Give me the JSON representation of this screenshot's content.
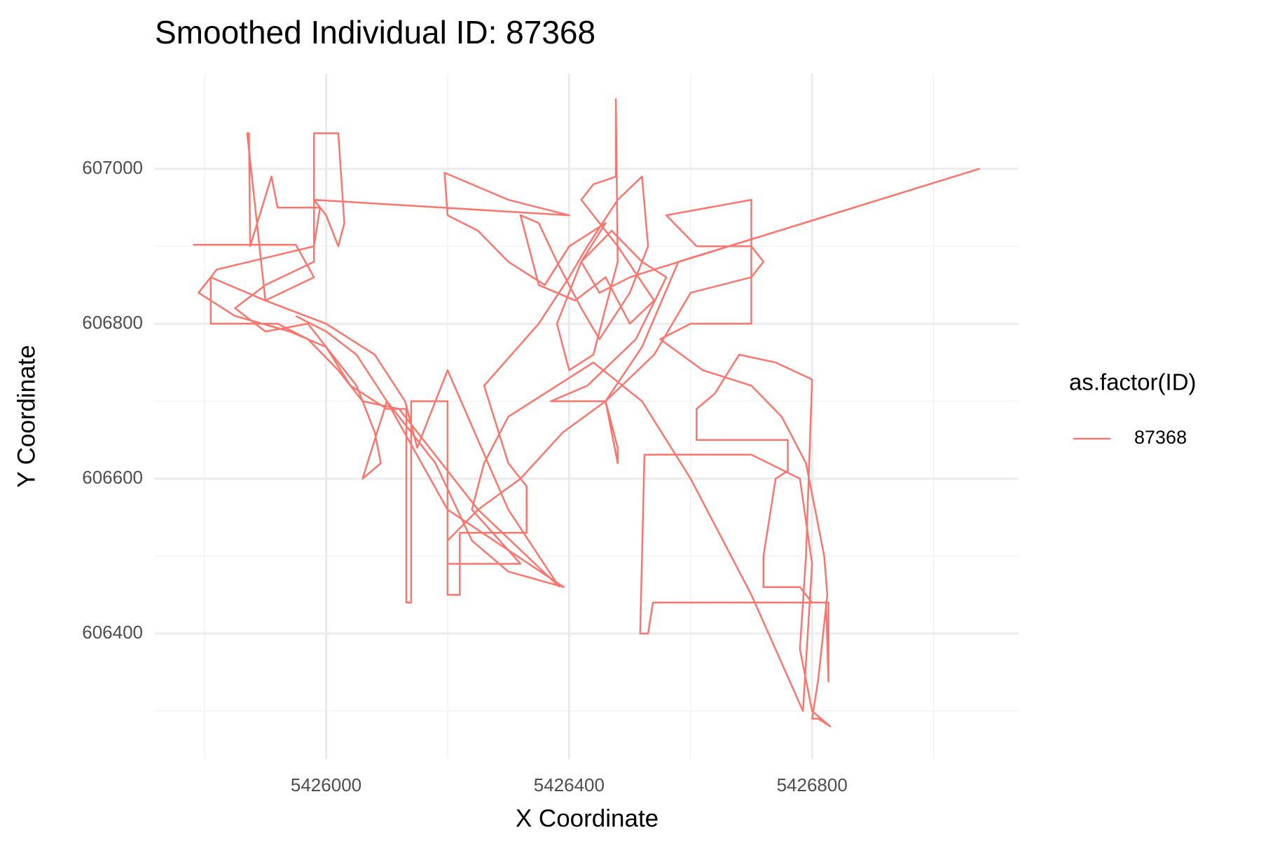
{
  "chart_data": {
    "type": "line",
    "title": "Smoothed Individual ID: 87368",
    "x_label": "X Coordinate",
    "y_label": "Y Coordinate",
    "legend_title": "as.factor(ID)",
    "legend_position": "right",
    "grid": true,
    "xlim": [
      5425718,
      5427140
    ],
    "ylim": [
      606238,
      607123
    ],
    "xticks": [
      5426000,
      5426400,
      5426800
    ],
    "yticks": [
      606400,
      606600,
      606800,
      607000
    ],
    "x_minor_ticks": [
      5425800,
      5426200,
      5426600,
      5427000
    ],
    "y_minor_ticks": [
      606300,
      606500,
      606700,
      606900
    ],
    "x": [
      5425781,
      5425950,
      5425980,
      5425900,
      5425810,
      5425810,
      5425920,
      5425970,
      5426020,
      5426060,
      5426120,
      5426160,
      5426200,
      5426250,
      5426383,
      5426300,
      5426200,
      5426150,
      5426130,
      5426080,
      5426000,
      5425900,
      5425870,
      5425873,
      5425875,
      5425910,
      5425920,
      5425990,
      5425980,
      5425820,
      5425800,
      5425790,
      5425850,
      5425940,
      5426000,
      5426040,
      5426100,
      5426132,
      5426132,
      5426140,
      5426140,
      5426200,
      5426200,
      5426220,
      5426220,
      5426330,
      5426330,
      5426300,
      5426260,
      5426350,
      5426400,
      5426430,
      5426480,
      5426520,
      5426530,
      5426500,
      5426450,
      5426420,
      5426380,
      5426350,
      5426320,
      5426350,
      5426410,
      5426460,
      5426500,
      5426540,
      5426480,
      5426420,
      5426440,
      5426477,
      5426477,
      5426480,
      5426440,
      5426400,
      5426380,
      5426420,
      5426470,
      5426520,
      5426560,
      5426510,
      5426430,
      5426370,
      5426460,
      5426480,
      5426480,
      5426460,
      5426540,
      5426600,
      5426700,
      5426720,
      5426700,
      5426610,
      5426560,
      5426700,
      5426700,
      5426600,
      5426550,
      5426620,
      5426700,
      5426750,
      5426790,
      5426800,
      5426810,
      5426820,
      5426825,
      5426810,
      5426800,
      5426810,
      5426830,
      5426800,
      5426780,
      5426790,
      5426800,
      5426740,
      5426680,
      5426640,
      5426610,
      5426610,
      5426760,
      5426760,
      5426740,
      5426720,
      5426720,
      5426780,
      5426800,
      5426827,
      5426827,
      5426823,
      5426538,
      5426530,
      5426517,
      5426524,
      5426700,
      5426780,
      5426800,
      5426785,
      5426700,
      5426600,
      5426520,
      5426440,
      5426300,
      5426260,
      5426240,
      5426320,
      5426200,
      5426200,
      5426250,
      5426320,
      5426390,
      5426460,
      5426520,
      5426580,
      5427075,
      5426540,
      5426500,
      5426450,
      5426420,
      5426460,
      5426400,
      5426360,
      5426300,
      5426250,
      5426200,
      5426195,
      5426300,
      5426400,
      5425980,
      5426000,
      5426020,
      5426030,
      5426020,
      5425980,
      5425980,
      5425900,
      5425850,
      5425900,
      5425970,
      5426010,
      5426050,
      5426080,
      5426090,
      5426060,
      5426100,
      5426140,
      5426180,
      5426240,
      5426300,
      5426391,
      5426200,
      5426100,
      5426050,
      5426000,
      5425950
    ],
    "series": [
      {
        "name": "87368",
        "color": "#F8766D",
        "values": [
          606902,
          606902,
          606860,
          606830,
          606860,
          606800,
          606800,
          606780,
          606740,
          606700,
          606690,
          606650,
          606610,
          606560,
          606461,
          606560,
          606740,
          606640,
          606700,
          606760,
          606800,
          606830,
          607046,
          607046,
          606900,
          606990,
          606950,
          606950,
          606900,
          606870,
          606850,
          606840,
          606810,
          606790,
          606770,
          606720,
          606690,
          606690,
          606440,
          606440,
          606700,
          606700,
          606450,
          606450,
          606530,
          606530,
          606590,
          606620,
          606720,
          606800,
          606860,
          606900,
          606960,
          606990,
          606900,
          606840,
          606780,
          606820,
          606880,
          606930,
          606940,
          606850,
          606830,
          606860,
          606800,
          606830,
          606900,
          606960,
          606980,
          606990,
          607090,
          606880,
          606760,
          606740,
          606800,
          606880,
          606920,
          606880,
          606860,
          606780,
          606720,
          606700,
          606700,
          606640,
          606620,
          606700,
          606760,
          606840,
          606860,
          606880,
          606900,
          606900,
          606940,
          606960,
          606800,
          606800,
          606780,
          606740,
          606720,
          606680,
          606620,
          606580,
          606540,
          606500,
          606450,
          606340,
          606290,
          606290,
          606280,
          606300,
          606380,
          606500,
          606728,
          606750,
          606760,
          606710,
          606690,
          606650,
          606650,
          606610,
          606600,
          606500,
          606460,
          606460,
          606440,
          606440,
          606338,
          606440,
          606440,
          606400,
          606400,
          606631,
          606631,
          606600,
          606490,
          606300,
          606450,
          606600,
          606700,
          606750,
          606680,
          606620,
          606560,
          606490,
          606490,
          606520,
          606560,
          606600,
          606660,
          606700,
          606770,
          606880,
          607000,
          606870,
          606860,
          606840,
          606880,
          606930,
          606900,
          606850,
          606880,
          606920,
          606940,
          606995,
          606960,
          606940,
          606960,
          606940,
          606900,
          606930,
          607046,
          607046,
          606880,
          606850,
          606820,
          606790,
          606800,
          606760,
          606720,
          606660,
          606620,
          606600,
          606700,
          606660,
          606620,
          606520,
          606480,
          606460,
          606560,
          606700,
          606760,
          606790,
          606810
        ]
      }
    ]
  }
}
